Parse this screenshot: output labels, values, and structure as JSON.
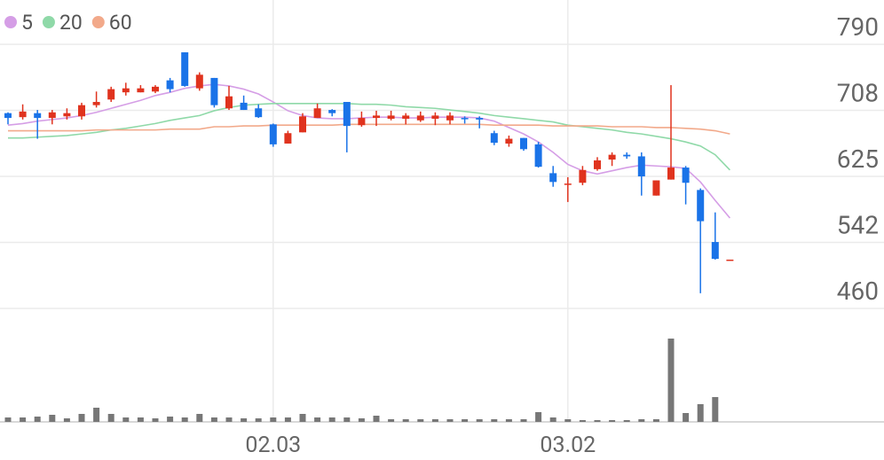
{
  "chart_data": {
    "type": "candlestick",
    "categories": [
      null,
      null,
      null,
      null,
      null,
      null,
      null,
      null,
      null,
      null,
      null,
      null,
      null,
      null,
      null,
      null,
      null,
      null,
      "02.03",
      null,
      null,
      null,
      null,
      null,
      null,
      null,
      null,
      null,
      null,
      null,
      null,
      null,
      null,
      null,
      null,
      null,
      null,
      null,
      "03.02",
      null,
      null,
      null,
      null,
      null,
      null,
      null,
      null,
      null,
      null,
      null
    ],
    "ohlc": [
      [
        704,
        705,
        690,
        698
      ],
      [
        699,
        715,
        696,
        706
      ],
      [
        704,
        708,
        672,
        698
      ],
      [
        698,
        708,
        690,
        705
      ],
      [
        700,
        710,
        696,
        704
      ],
      [
        700,
        717,
        696,
        714
      ],
      [
        714,
        731,
        711,
        718
      ],
      [
        721,
        737,
        718,
        734
      ],
      [
        730,
        742,
        726,
        735
      ],
      [
        730,
        739,
        730,
        735
      ],
      [
        731,
        739,
        729,
        737
      ],
      [
        745,
        748,
        730,
        734
      ],
      [
        780,
        780,
        737,
        738
      ],
      [
        735,
        755,
        732,
        752
      ],
      [
        748,
        748,
        711,
        714
      ],
      [
        710,
        738,
        708,
        725
      ],
      [
        717,
        726,
        708,
        708
      ],
      [
        710,
        715,
        698,
        699
      ],
      [
        690,
        691,
        662,
        665
      ],
      [
        666,
        682,
        666,
        679
      ],
      [
        680,
        704,
        680,
        700
      ],
      [
        698,
        716,
        698,
        710
      ],
      [
        708,
        709,
        700,
        704
      ],
      [
        718,
        718,
        655,
        688
      ],
      [
        689,
        706,
        687,
        698
      ],
      [
        698,
        707,
        688,
        701
      ],
      [
        697,
        707,
        695,
        701
      ],
      [
        697,
        704,
        690,
        701
      ],
      [
        695,
        706,
        693,
        701
      ],
      [
        697,
        705,
        689,
        701
      ],
      [
        695,
        705,
        690,
        701
      ],
      [
        698,
        700,
        691,
        697
      ],
      [
        698,
        700,
        685,
        696
      ],
      [
        679,
        682,
        664,
        667
      ],
      [
        666,
        676,
        662,
        672
      ],
      [
        673,
        673,
        657,
        659
      ],
      [
        665,
        668,
        636,
        637
      ],
      [
        629,
        638,
        612,
        618
      ],
      [
        615,
        624,
        593,
        616
      ],
      [
        617,
        638,
        614,
        633
      ],
      [
        634,
        649,
        632,
        645
      ],
      [
        646,
        655,
        638,
        652
      ],
      [
        652,
        655,
        647,
        650
      ],
      [
        650,
        655,
        601,
        625
      ],
      [
        601,
        620,
        601,
        620
      ],
      [
        621,
        739,
        621,
        636
      ],
      [
        636,
        638,
        590,
        617
      ],
      [
        608,
        610,
        479,
        569
      ],
      [
        543,
        580,
        521,
        522
      ],
      [
        521,
        521,
        521,
        521
      ]
    ],
    "up_color": "#e0331e",
    "down_color": "#1a73e8",
    "series": [
      {
        "name": "5",
        "color": "#d59ee6",
        "values": [
          689,
          691,
          694,
          696,
          698,
          701,
          705,
          710,
          715,
          720,
          726,
          730,
          735,
          738,
          740,
          738,
          734,
          728,
          718,
          707,
          701,
          698,
          697,
          697,
          698,
          699,
          699,
          698,
          698,
          699,
          699,
          699,
          698,
          694,
          686,
          678,
          668,
          655,
          640,
          632,
          628,
          632,
          636,
          639,
          638,
          637,
          635,
          618,
          595,
          573
        ]
      },
      {
        "name": "20",
        "color": "#8fd9a8",
        "values": [
          673,
          673,
          674,
          675,
          676,
          678,
          680,
          683,
          685,
          688,
          691,
          695,
          698,
          701,
          707,
          711,
          714,
          715,
          716,
          716,
          716,
          716,
          716,
          716,
          715,
          715,
          714,
          712,
          711,
          710,
          708,
          706,
          704,
          701,
          699,
          697,
          695,
          693,
          689,
          687,
          685,
          683,
          680,
          678,
          675,
          672,
          668,
          663,
          652,
          633
        ]
      },
      {
        "name": "60",
        "color": "#f2a98a",
        "values": [
          682,
          682,
          682,
          682,
          682,
          682,
          683,
          683,
          683,
          683,
          683,
          684,
          684,
          684,
          687,
          687,
          688,
          688,
          689,
          689,
          689,
          689,
          689,
          690,
          690,
          690,
          690,
          690,
          690,
          690,
          690,
          690,
          690,
          689,
          689,
          689,
          689,
          688,
          688,
          688,
          688,
          687,
          687,
          687,
          686,
          686,
          685,
          684,
          682,
          678
        ]
      }
    ],
    "volume": {
      "color": "#777777",
      "ylim": [
        0,
        100
      ],
      "values": [
        5,
        5,
        6,
        8,
        4,
        9,
        16,
        9,
        5,
        5,
        4,
        6,
        5,
        9,
        5,
        5,
        4,
        4,
        5,
        5,
        9,
        5,
        5,
        5,
        4,
        7,
        3,
        3,
        3,
        3,
        3,
        3,
        3,
        3,
        3,
        3,
        11,
        5,
        3,
        2,
        2,
        2,
        2,
        3,
        3,
        94,
        10,
        20,
        28,
        0
      ]
    },
    "ylim": [
      460,
      790
    ],
    "yticks": [
      790,
      {
        "value": 707.5,
        "label": "708"
      },
      625,
      {
        "value": 542.5,
        "label": "542"
      },
      460
    ],
    "grid": true
  }
}
